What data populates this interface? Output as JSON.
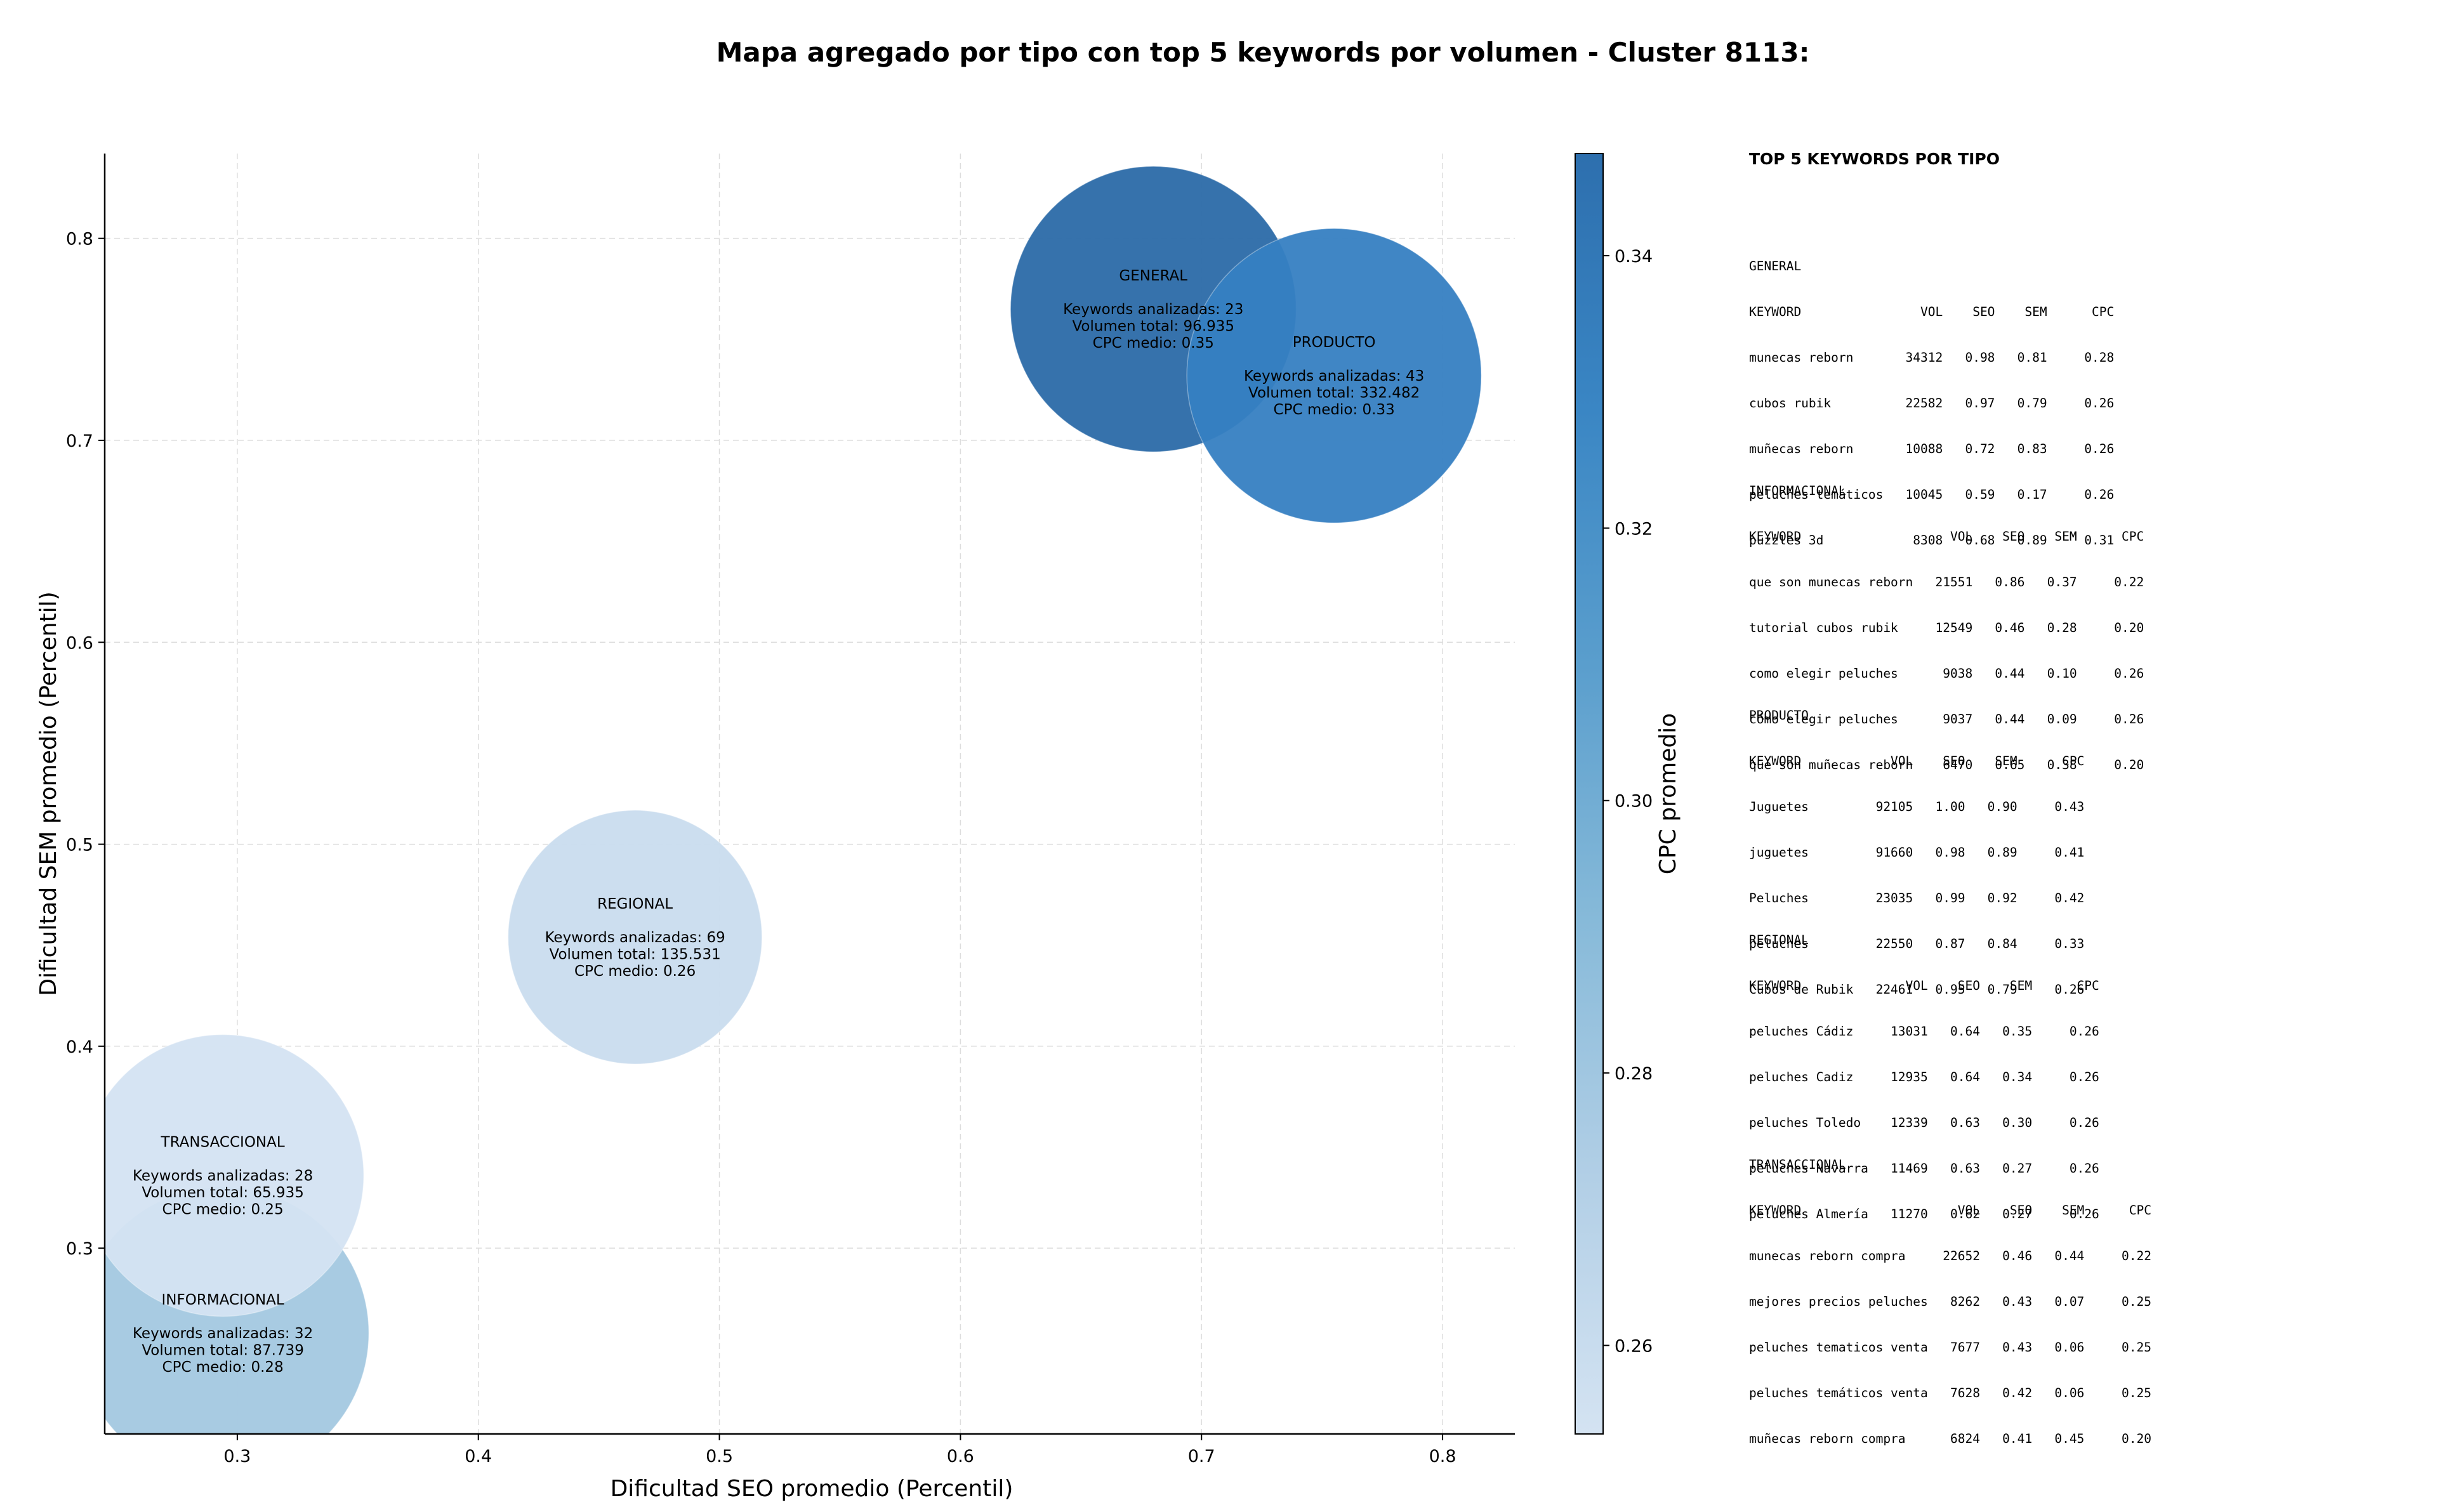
{
  "chart_data": {
    "type": "scatter",
    "title": "Mapa agregado por tipo con top 5 keywords por volumen - Cluster 8113:",
    "xlabel": "Dificultad SEO promedio (Percentil)",
    "ylabel": "Dificultad SEM promedio (Percentil)",
    "colorbar_label": "CPC promedio",
    "xlim": [
      0.245,
      0.83
    ],
    "ylim": [
      0.208,
      0.842
    ],
    "xticks": [
      0.3,
      0.4,
      0.5,
      0.6,
      0.7,
      0.8
    ],
    "yticks": [
      0.3,
      0.4,
      0.5,
      0.6,
      0.7,
      0.8
    ],
    "colorbar_range": [
      0.2535,
      0.3475
    ],
    "colorbar_ticks": [
      0.26,
      0.28,
      0.3,
      0.32,
      0.34
    ],
    "colorbar_colors": [
      "#d4e3f2",
      "#b2cfe6",
      "#87bad9",
      "#5a9ecd",
      "#3a86c4",
      "#2d6fae"
    ],
    "grid": true,
    "points": [
      {
        "label": "GENERAL",
        "x": 0.68,
        "y": 0.765,
        "keywords": 23,
        "volume": "96.935",
        "cpc": 0.35,
        "color": "#2b6aa8",
        "text": [
          "GENERAL",
          "",
          "Keywords analizadas: 23",
          "Volumen total: 96.935",
          "CPC medio: 0.35"
        ]
      },
      {
        "label": "PRODUCTO",
        "x": 0.755,
        "y": 0.732,
        "keywords": 43,
        "volume": "332.482",
        "cpc": 0.33,
        "color": "#3680c2",
        "text": [
          "PRODUCTO",
          "",
          "Keywords analizadas: 43",
          "Volumen total: 332.482",
          "CPC medio: 0.33"
        ]
      },
      {
        "label": "REGIONAL",
        "x": 0.465,
        "y": 0.454,
        "keywords": 69,
        "volume": "135.531",
        "cpc": 0.26,
        "color": "#c9dcee",
        "text": [
          "REGIONAL",
          "",
          "Keywords analizadas: 69",
          "Volumen total: 135.531",
          "CPC medio: 0.26"
        ]
      },
      {
        "label": "INFORMACIONAL",
        "x": 0.294,
        "y": 0.258,
        "keywords": 32,
        "volume": "87.739",
        "cpc": 0.28,
        "color": "#a3c8e0",
        "text": [
          "INFORMACIONAL",
          "",
          "Keywords analizadas: 32",
          "Volumen total: 87.739",
          "CPC medio: 0.28"
        ]
      },
      {
        "label": "TRANSACCIONAL",
        "x": 0.294,
        "y": 0.336,
        "keywords": 28,
        "volume": "65.935",
        "cpc": 0.25,
        "color": "#d4e3f2",
        "text": [
          "TRANSACCIONAL",
          "",
          "Keywords analizadas: 28",
          "Volumen total: 65.935",
          "CPC medio: 0.25"
        ]
      }
    ]
  },
  "side_panel": {
    "title": "TOP 5 KEYWORDS POR TIPO",
    "blocks": [
      {
        "lines": [
          "GENERAL",
          "KEYWORD                VOL    SEO    SEM      CPC",
          "munecas reborn       34312   0.98   0.81     0.28",
          "cubos rubik          22582   0.97   0.79     0.26",
          "muñecas reborn       10088   0.72   0.83     0.26",
          "peluches temáticos   10045   0.59   0.17     0.26",
          "puzzles 3d            8308   0.68   0.89     0.31"
        ]
      },
      {
        "lines": [
          "INFORMACIONAL",
          "KEYWORD                    VOL    SEO    SEM      CPC",
          "que son munecas reborn   21551   0.86   0.37     0.22",
          "tutorial cubos rubik     12549   0.46   0.28     0.20",
          "como elegir peluches      9038   0.44   0.10     0.26",
          "cómo elegir peluches      9037   0.44   0.09     0.26",
          "qué son muñecas reborn    6470   0.65   0.38     0.20"
        ]
      },
      {
        "lines": [
          "PRODUCTO",
          "KEYWORD            VOL    SEO    SEM      CPC",
          "Juguetes         92105   1.00   0.90     0.43",
          "juguetes         91660   0.98   0.89     0.41",
          "Peluches         23035   0.99   0.92     0.42",
          "peluches         22550   0.87   0.84     0.33",
          "Cubos de Rubik   22461   0.95   0.79     0.26"
        ]
      },
      {
        "lines": [
          "REGIONAL",
          "KEYWORD              VOL    SEO    SEM      CPC",
          "peluches Cádiz     13031   0.64   0.35     0.26",
          "peluches Cadiz     12935   0.64   0.34     0.26",
          "peluches Toledo    12339   0.63   0.30     0.26",
          "peluches Navarra   11469   0.63   0.27     0.26",
          "peluches Almería   11270   0.62   0.27     0.26"
        ]
      },
      {
        "lines": [
          "TRANSACCIONAL",
          "KEYWORD                     VOL    SEO    SEM      CPC",
          "munecas reborn compra     22652   0.46   0.44     0.22",
          "mejores precios peluches   8262   0.43   0.07     0.25",
          "peluches tematicos venta   7677   0.43   0.06     0.25",
          "peluches temáticos venta   7628   0.42   0.06     0.25",
          "muñecas reborn compra      6824   0.41   0.45     0.20"
        ]
      }
    ]
  }
}
